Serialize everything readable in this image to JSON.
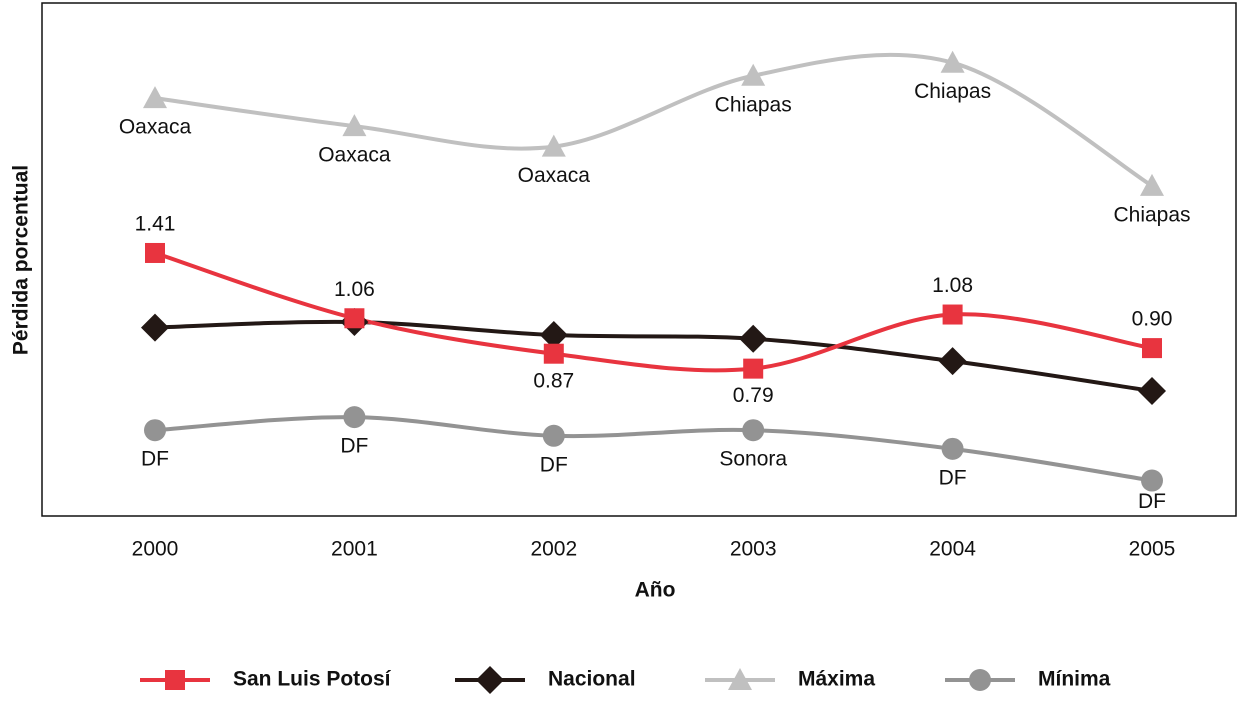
{
  "chart_data": {
    "type": "line",
    "xlabel": "Año",
    "ylabel": "Pérdida porcentual",
    "categories": [
      "2000",
      "2001",
      "2002",
      "2003",
      "2004",
      "2005"
    ],
    "ylim": [
      0,
      2.75
    ],
    "series": [
      {
        "name": "San Luis Potosí",
        "color": "#e8343f",
        "marker": "square",
        "values": [
          1.41,
          1.06,
          0.87,
          0.79,
          1.08,
          0.9
        ],
        "value_labels": [
          "1.41",
          "1.06",
          "0.87",
          "0.79",
          "1.08",
          "0.90"
        ]
      },
      {
        "name": "Nacional",
        "color": "#231815",
        "marker": "diamond",
        "values": [
          1.01,
          1.04,
          0.97,
          0.95,
          0.83,
          0.67
        ]
      },
      {
        "name": "Máxima",
        "color": "#c0c0c0",
        "marker": "triangle",
        "values": [
          2.24,
          2.09,
          1.98,
          2.36,
          2.43,
          1.77
        ],
        "point_labels": [
          "Oaxaca",
          "Oaxaca",
          "Oaxaca",
          "Chiapas",
          "Chiapas",
          "Chiapas"
        ]
      },
      {
        "name": "Mínima",
        "color": "#939393",
        "marker": "circle",
        "values": [
          0.46,
          0.53,
          0.43,
          0.46,
          0.36,
          0.19
        ],
        "point_labels": [
          "DF",
          "DF",
          "DF",
          "Sonora",
          "DF",
          "DF"
        ]
      }
    ]
  }
}
